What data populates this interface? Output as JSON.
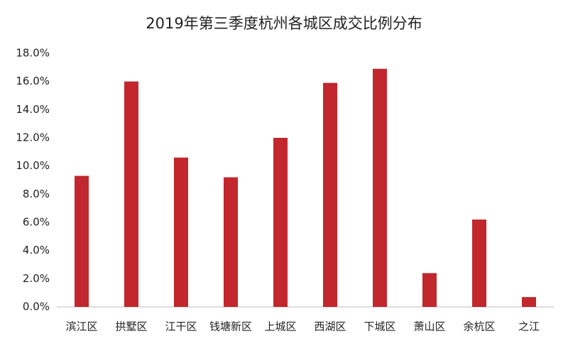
{
  "chart_data": {
    "type": "bar",
    "title": "2019年第三季度杭州各城区成交比例分布",
    "categories": [
      "滨江区",
      "拱墅区",
      "江干区",
      "钱塘新区",
      "上城区",
      "西湖区",
      "下城区",
      "萧山区",
      "余杭区",
      "之江"
    ],
    "values": [
      9.3,
      16.0,
      10.6,
      9.2,
      12.0,
      15.9,
      16.9,
      2.4,
      6.2,
      0.7
    ],
    "color": "#c1272d",
    "ylim": [
      0,
      18
    ],
    "yticks": [
      {
        "value": 0,
        "label": "0.0%"
      },
      {
        "value": 2,
        "label": "2.0%"
      },
      {
        "value": 4,
        "label": "4.0%"
      },
      {
        "value": 6,
        "label": "6.0%"
      },
      {
        "value": 8,
        "label": "8.0%"
      },
      {
        "value": 10,
        "label": "10.0%"
      },
      {
        "value": 12,
        "label": "12.0%"
      },
      {
        "value": 14,
        "label": "14.0%"
      },
      {
        "value": 16,
        "label": "16.0%"
      },
      {
        "value": 18,
        "label": "18.0%"
      }
    ],
    "grid": false
  }
}
